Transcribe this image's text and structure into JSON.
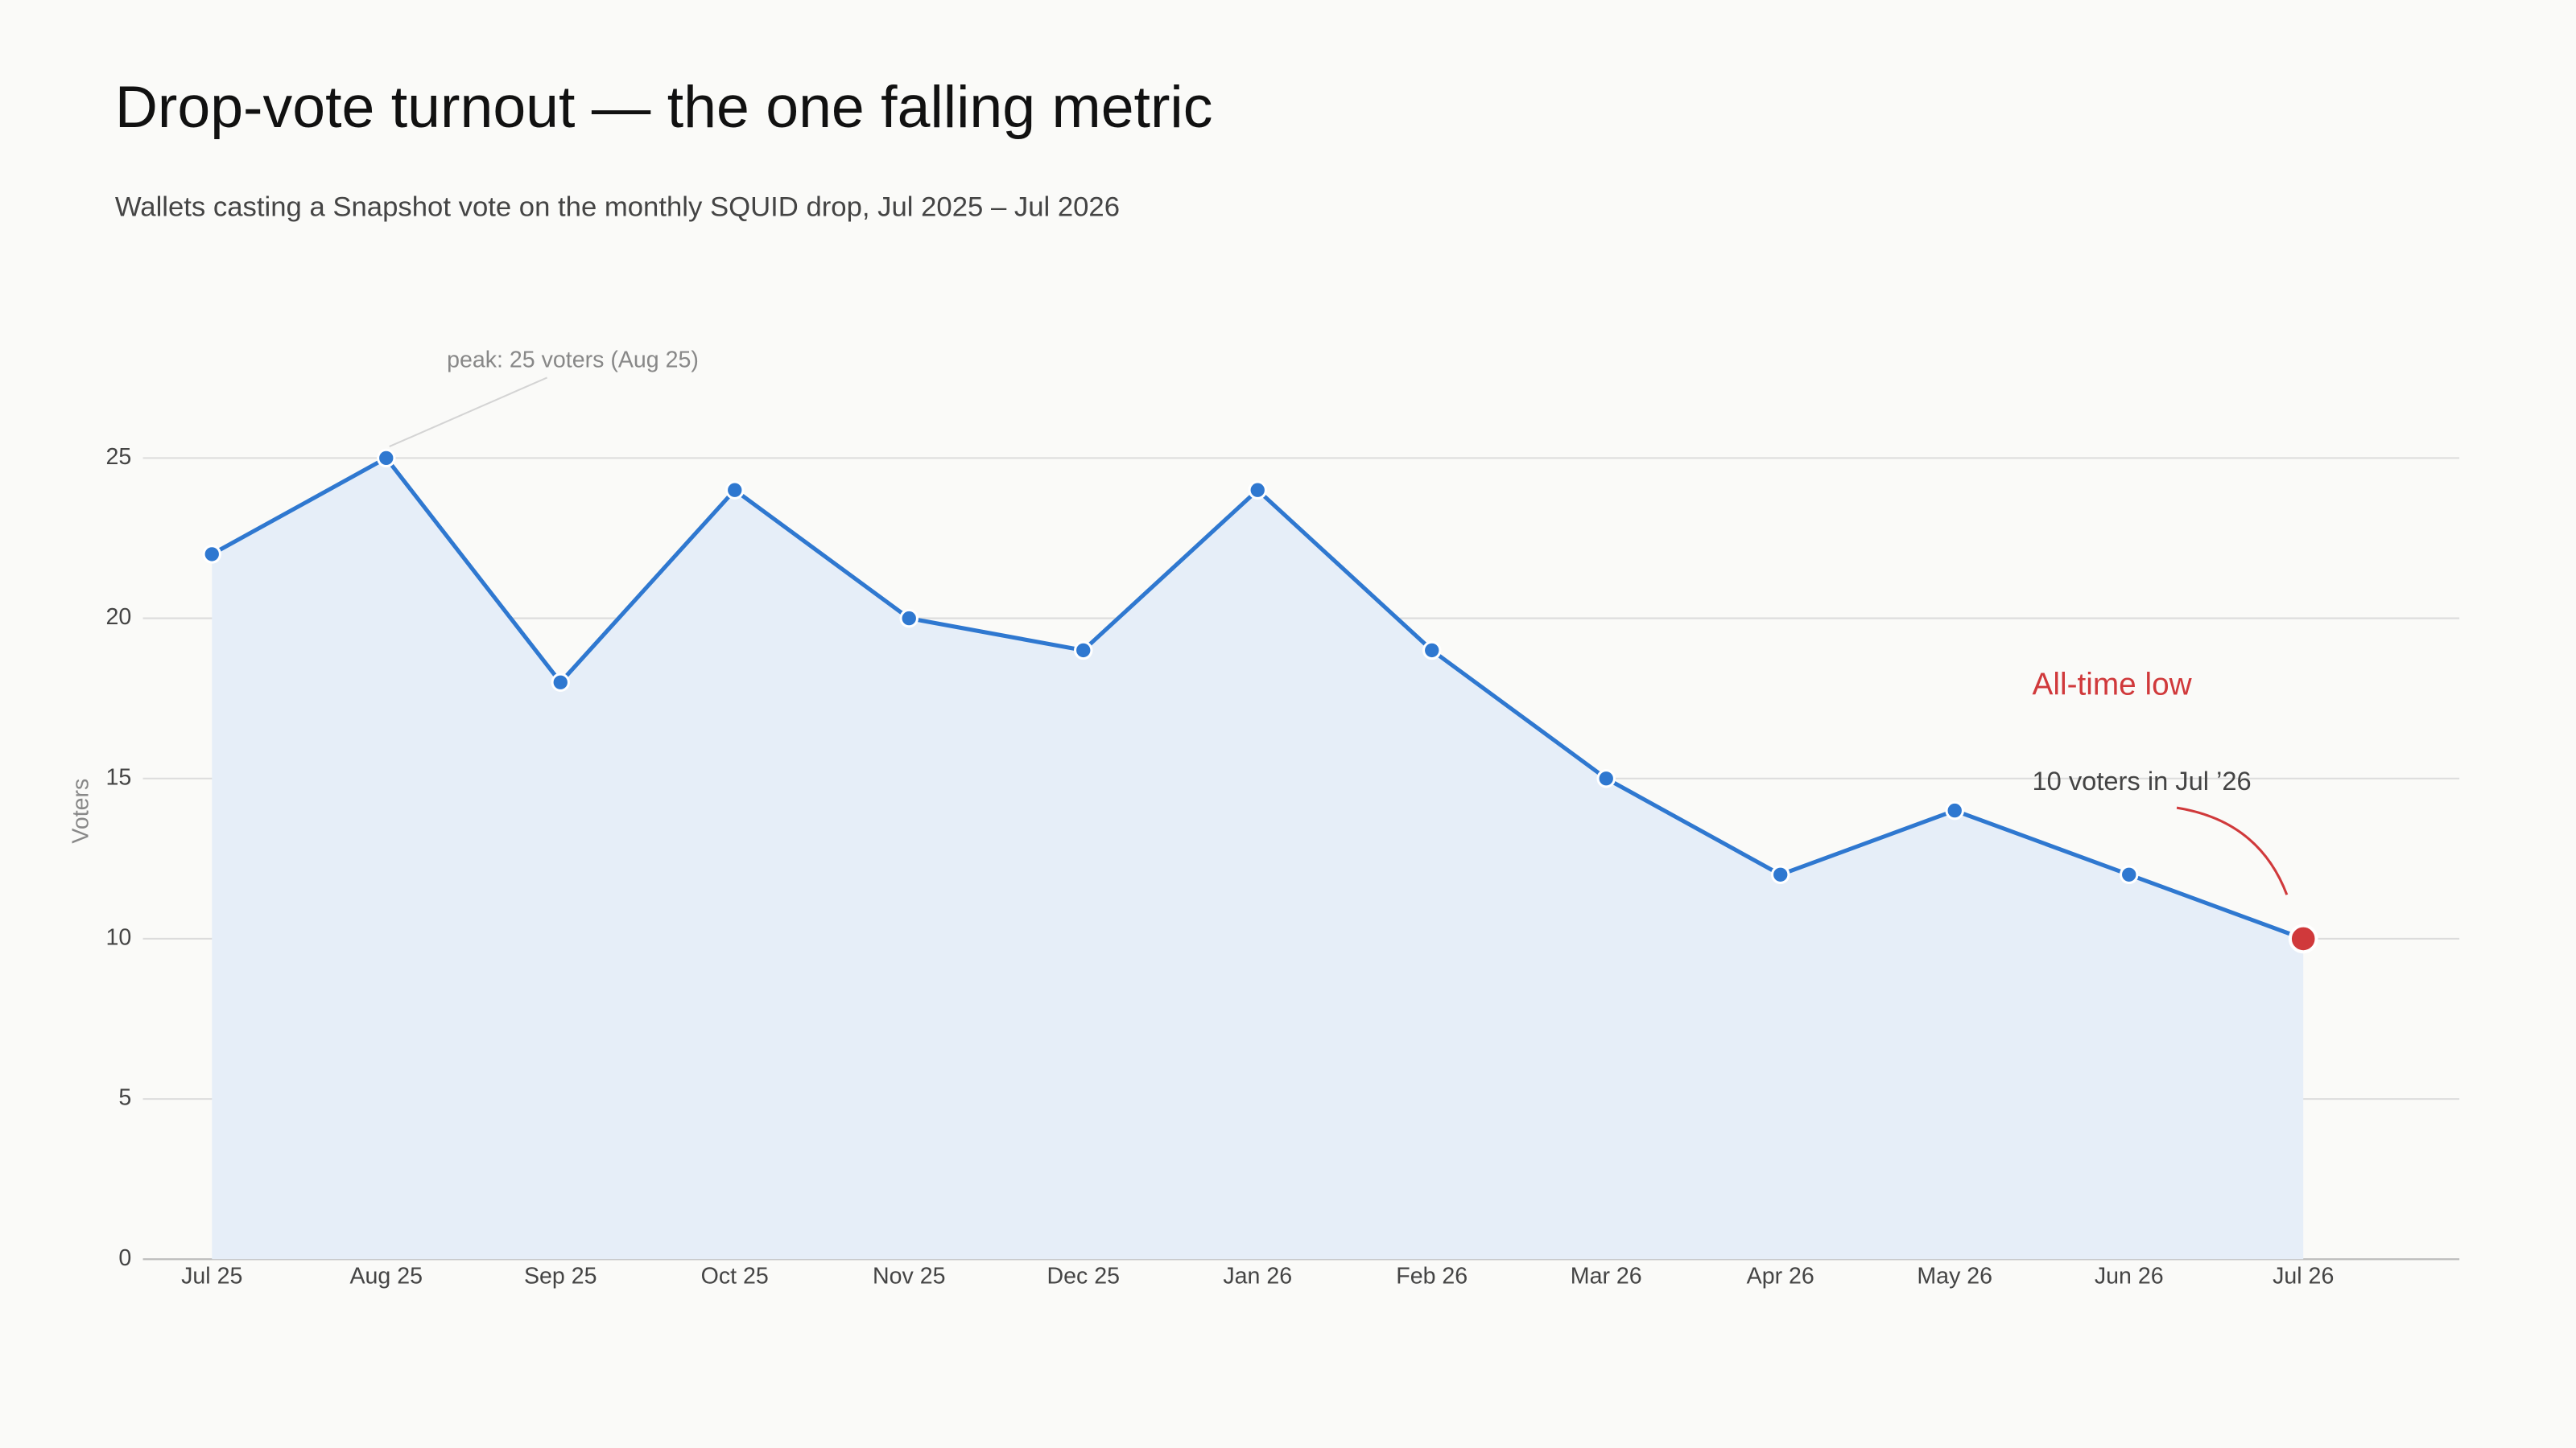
{
  "chart_data": {
    "type": "line",
    "title": "Drop-vote turnout — the one falling metric",
    "subtitle": "Wallets casting a Snapshot vote on the monthly SQUID drop, Jul 2025 – Jul 2026",
    "y_label": "Voters",
    "categories": [
      "Jul 25",
      "Aug 25",
      "Sep 25",
      "Oct 25",
      "Nov 25",
      "Dec 25",
      "Jan 26",
      "Feb 26",
      "Mar 26",
      "Apr 26",
      "May 26",
      "Jun 26",
      "Jul 26"
    ],
    "values": [
      22,
      25,
      18,
      24,
      20,
      19,
      24,
      19,
      15,
      12,
      14,
      12,
      10
    ],
    "color": "#2f78d0",
    "fill_color": "#e6eef8",
    "highlight_color": "#d0393b",
    "ylim": [
      0,
      25
    ],
    "yticks": [
      0,
      5,
      10,
      15,
      20,
      25
    ],
    "grid": true,
    "peak_annotation": "peak: 25 voters (Aug 25)",
    "low_annotation": {
      "title": "All-time low",
      "text": "10 voters in Jul ’26"
    }
  }
}
